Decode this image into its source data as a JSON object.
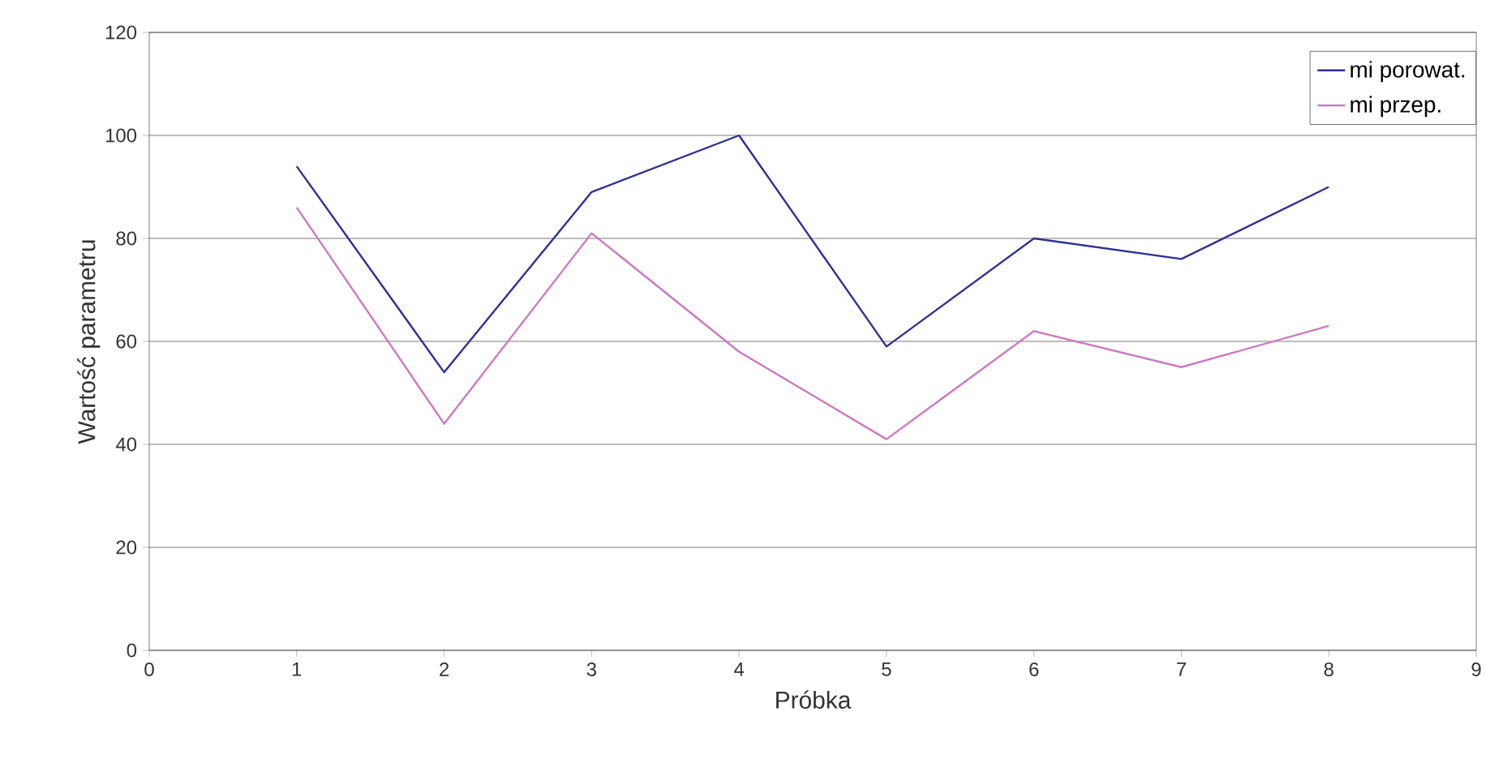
{
  "chart_data": {
    "type": "line",
    "xlabel": "Próbka",
    "ylabel": "Wartość parametru",
    "x": [
      1,
      2,
      3,
      4,
      5,
      6,
      7,
      8
    ],
    "series": [
      {
        "name": "mi porowat.",
        "color": "#2e3192",
        "values": [
          94,
          54,
          89,
          100,
          59,
          80,
          76,
          90
        ]
      },
      {
        "name": "mi przep.",
        "color": "#cc79bf",
        "values": [
          86,
          44,
          81,
          58,
          41,
          62,
          55,
          63
        ]
      }
    ],
    "xlim": [
      0,
      9
    ],
    "xticks": [
      0,
      1,
      2,
      3,
      4,
      5,
      6,
      7,
      8,
      9
    ],
    "ylim": [
      0,
      120
    ],
    "yticks": [
      0,
      20,
      40,
      60,
      80,
      100,
      120
    ],
    "grid": "y",
    "legend": "top right",
    "marker": "none",
    "line_style": "solid"
  }
}
